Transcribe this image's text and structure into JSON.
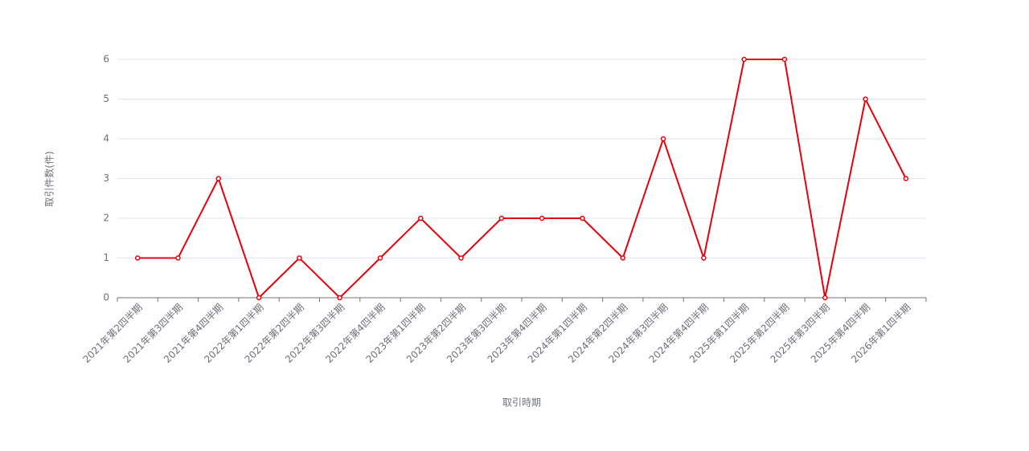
{
  "chart_data": {
    "type": "line",
    "x_label": "取引時期",
    "y_label": "取引件数(件)",
    "categories": [
      "2021年第2四半期",
      "2021年第3四半期",
      "2021年第4四半期",
      "2022年第1四半期",
      "2022年第2四半期",
      "2022年第3四半期",
      "2022年第4四半期",
      "2023年第1四半期",
      "2023年第2四半期",
      "2023年第3四半期",
      "2023年第4四半期",
      "2024年第1四半期",
      "2024年第2四半期",
      "2024年第3四半期",
      "2024年第4四半期",
      "2025年第1四半期",
      "2025年第2四半期",
      "2025年第3四半期",
      "2025年第4四半期",
      "2026年第1四半期"
    ],
    "values": [
      1,
      1,
      3,
      0,
      1,
      0,
      1,
      2,
      1,
      2,
      2,
      2,
      1,
      4,
      1,
      6,
      6,
      0,
      5,
      3
    ],
    "color": "#e8000b",
    "ylim": [
      0,
      6
    ],
    "yticks": [
      0,
      1,
      2,
      3,
      4,
      5,
      6
    ],
    "grid": true
  }
}
